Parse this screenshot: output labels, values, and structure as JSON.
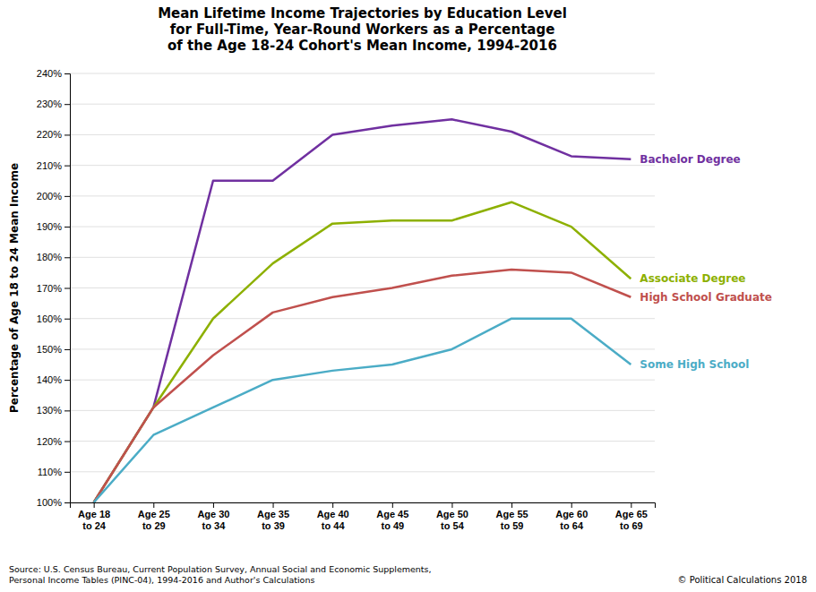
{
  "chart_data": {
    "type": "line",
    "title": "Mean Lifetime Income Trajectories by Education Level\nfor Full-Time, Year-Round Workers as a Percentage\nof the Age 18-24 Cohort's Mean Income, 1994-2016",
    "y_label": "Percentage of Age 18 to 24 Mean Income",
    "categories": [
      "Age 18\nto 24",
      "Age 25\nto 29",
      "Age 30\nto 34",
      "Age 35\nto 39",
      "Age 40\nto 44",
      "Age 45\nto 49",
      "Age 50\nto 54",
      "Age 55\nto 59",
      "Age 60\nto 64",
      "Age 65\nto 69"
    ],
    "series": [
      {
        "name": "Bachelor Degree",
        "color": "#7030A0",
        "values": [
          100,
          131,
          205,
          205,
          220,
          223,
          225,
          221,
          213,
          212
        ]
      },
      {
        "name": "Associate Degree",
        "color": "#8DB000",
        "values": [
          100,
          131,
          160,
          178,
          191,
          192,
          192,
          198,
          190,
          173
        ]
      },
      {
        "name": "High School Graduate",
        "color": "#C0504D",
        "values": [
          100,
          131,
          148,
          162,
          167,
          170,
          174,
          176,
          175,
          167
        ]
      },
      {
        "name": "Some High School",
        "color": "#4BACC6",
        "values": [
          100,
          122,
          131,
          140,
          143,
          145,
          150,
          160,
          160,
          145
        ]
      }
    ],
    "ylim": [
      100,
      240
    ],
    "yticks": [
      {
        "value": 100,
        "label": "100%"
      },
      {
        "value": 110,
        "label": "110%"
      },
      {
        "value": 120,
        "label": "120%"
      },
      {
        "value": 130,
        "label": "130%"
      },
      {
        "value": 140,
        "label": "140%"
      },
      {
        "value": 150,
        "label": "150%"
      },
      {
        "value": 160,
        "label": "160%"
      },
      {
        "value": 170,
        "label": "170%"
      },
      {
        "value": 180,
        "label": "180%"
      },
      {
        "value": 190,
        "label": "190%"
      },
      {
        "value": 200,
        "label": "200%"
      },
      {
        "value": 210,
        "label": "210%"
      },
      {
        "value": 220,
        "label": "220%"
      },
      {
        "value": 230,
        "label": "230%"
      },
      {
        "value": 240,
        "label": "240%"
      }
    ],
    "grid": true,
    "annotations": [
      "Source: U.S. Census Bureau, Current Population Survey, Annual Social and Economic Supplements,\nPersonal Income Tables (PINC-04), 1994-2016 and Author's Calculations",
      "© Political Calculations 2018"
    ]
  }
}
